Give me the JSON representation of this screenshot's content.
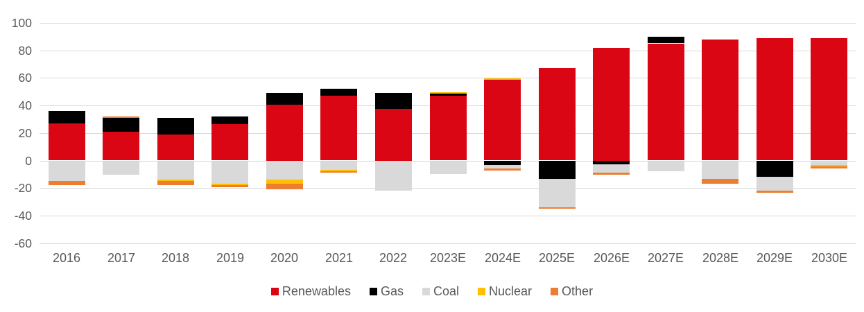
{
  "chart_data": {
    "type": "bar",
    "stacked": true,
    "title": "",
    "xlabel": "",
    "ylabel": "",
    "categories": [
      "2016",
      "2017",
      "2018",
      "2019",
      "2020",
      "2021",
      "2022",
      "2023E",
      "2024E",
      "2025E",
      "2026E",
      "2027E",
      "2028E",
      "2029E",
      "2030E"
    ],
    "series": [
      {
        "name": "Renewables",
        "color": "#da0613",
        "values": [
          27,
          21,
          19,
          26.5,
          40.5,
          47,
          37.5,
          47,
          58.5,
          67,
          82,
          85,
          88,
          89,
          89
        ]
      },
      {
        "name": "Gas",
        "color": "#000000",
        "values": [
          9,
          10,
          12,
          5.5,
          8.5,
          5,
          11.5,
          1.5,
          -3,
          -13.5,
          -2.5,
          5,
          0,
          -12,
          0
        ]
      },
      {
        "name": "Coal",
        "color": "#d9d9d9",
        "values": [
          -15,
          -10.5,
          -14,
          -17,
          -14,
          -7,
          -22,
          -10,
          -3,
          -20.5,
          -6.5,
          -8,
          -13.5,
          -10,
          -3
        ]
      },
      {
        "name": "Nuclear",
        "color": "#ffc000",
        "values": [
          0,
          0,
          -1,
          -1,
          -3,
          -1,
          0,
          1,
          1,
          0,
          0,
          0,
          0,
          0,
          -1.5
        ]
      },
      {
        "name": "Other",
        "color": "#ed7d31",
        "values": [
          -3,
          1,
          -3,
          -1.5,
          -4,
          -1,
          0,
          0,
          -1.5,
          -1,
          -1.5,
          0,
          -3.5,
          -1.5,
          -1.5
        ]
      }
    ],
    "ylim": [
      -60,
      100
    ],
    "yticks": [
      100,
      80,
      60,
      40,
      20,
      0,
      -20,
      -40,
      -60
    ],
    "grid": true,
    "legend_position": "bottom",
    "axis_text_color": "#595959",
    "gridline_color": "#d9d9d9"
  }
}
